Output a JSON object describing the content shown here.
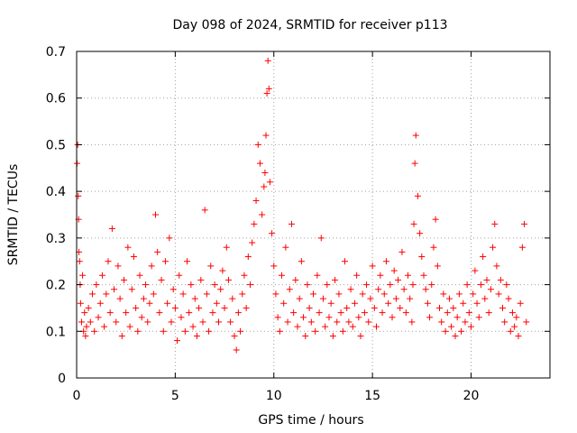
{
  "chart_data": {
    "type": "scatter",
    "title": "Day 098 of 2024, SRMTID for receiver p113",
    "xlabel": "GPS time / hours",
    "ylabel": "SRMTID / TECUs",
    "xlim": [
      0,
      24
    ],
    "ylim": [
      0,
      0.7
    ],
    "x_ticks": [
      0,
      5,
      10,
      15,
      20
    ],
    "x_tick_labels": [
      "0",
      "5",
      "10",
      "15",
      "20"
    ],
    "y_ticks": [
      0,
      0.1,
      0.2,
      0.3,
      0.4,
      0.5,
      0.6,
      0.7
    ],
    "y_tick_labels": [
      "0",
      "0.1",
      "0.2",
      "0.3",
      "0.4",
      "0.5",
      "0.6",
      "0.7"
    ],
    "grid": true,
    "marker": "+",
    "series": [
      {
        "name": "SRMTID",
        "color": "#ff0000",
        "x": [
          0.02,
          0.05,
          0.08,
          0.1,
          0.12,
          0.15,
          0.18,
          0.2,
          0.25,
          0.3,
          0.35,
          0.4,
          0.45,
          0.5,
          0.6,
          0.7,
          0.8,
          0.9,
          1.0,
          1.1,
          1.2,
          1.3,
          1.4,
          1.5,
          1.6,
          1.7,
          1.8,
          1.9,
          2.0,
          2.1,
          2.2,
          2.3,
          2.4,
          2.5,
          2.6,
          2.7,
          2.8,
          2.9,
          3.0,
          3.1,
          3.2,
          3.3,
          3.4,
          3.5,
          3.6,
          3.7,
          3.8,
          3.9,
          4.0,
          4.1,
          4.2,
          4.3,
          4.4,
          4.5,
          4.6,
          4.7,
          4.8,
          4.9,
          5.0,
          5.1,
          5.2,
          5.3,
          5.4,
          5.5,
          5.6,
          5.7,
          5.8,
          5.9,
          6.0,
          6.1,
          6.2,
          6.3,
          6.4,
          6.5,
          6.6,
          6.7,
          6.8,
          6.9,
          7.0,
          7.1,
          7.2,
          7.3,
          7.4,
          7.5,
          7.6,
          7.7,
          7.8,
          7.9,
          8.0,
          8.1,
          8.2,
          8.3,
          8.4,
          8.5,
          8.6,
          8.7,
          8.8,
          8.9,
          9.0,
          9.1,
          9.2,
          9.3,
          9.4,
          9.5,
          9.55,
          9.6,
          9.65,
          9.7,
          9.75,
          9.8,
          9.9,
          10.0,
          10.1,
          10.2,
          10.3,
          10.4,
          10.5,
          10.6,
          10.7,
          10.8,
          10.9,
          11.0,
          11.1,
          11.2,
          11.3,
          11.4,
          11.5,
          11.6,
          11.7,
          11.8,
          11.9,
          12.0,
          12.1,
          12.2,
          12.3,
          12.4,
          12.5,
          12.6,
          12.7,
          12.8,
          12.9,
          13.0,
          13.1,
          13.2,
          13.3,
          13.4,
          13.5,
          13.6,
          13.7,
          13.8,
          13.9,
          14.0,
          14.1,
          14.2,
          14.3,
          14.4,
          14.5,
          14.6,
          14.7,
          14.8,
          14.9,
          15.0,
          15.1,
          15.2,
          15.3,
          15.4,
          15.5,
          15.6,
          15.7,
          15.8,
          15.9,
          16.0,
          16.1,
          16.2,
          16.3,
          16.4,
          16.5,
          16.6,
          16.7,
          16.8,
          16.9,
          17.0,
          17.05,
          17.1,
          17.15,
          17.2,
          17.3,
          17.4,
          17.5,
          17.6,
          17.7,
          17.8,
          17.9,
          18.0,
          18.1,
          18.2,
          18.3,
          18.4,
          18.5,
          18.6,
          18.7,
          18.8,
          18.9,
          19.0,
          19.1,
          19.2,
          19.3,
          19.4,
          19.5,
          19.6,
          19.7,
          19.8,
          19.9,
          20.0,
          20.1,
          20.2,
          20.3,
          20.4,
          20.5,
          20.6,
          20.7,
          20.8,
          20.9,
          21.0,
          21.1,
          21.2,
          21.3,
          21.4,
          21.5,
          21.6,
          21.7,
          21.8,
          21.9,
          22.0,
          22.1,
          22.2,
          22.3,
          22.4,
          22.5,
          22.6,
          22.7,
          22.8
        ],
        "y": [
          0.46,
          0.5,
          0.39,
          0.34,
          0.27,
          0.25,
          0.2,
          0.16,
          0.12,
          0.22,
          0.1,
          0.14,
          0.09,
          0.11,
          0.15,
          0.12,
          0.18,
          0.1,
          0.2,
          0.13,
          0.16,
          0.22,
          0.11,
          0.18,
          0.25,
          0.14,
          0.32,
          0.19,
          0.12,
          0.24,
          0.17,
          0.09,
          0.21,
          0.14,
          0.28,
          0.11,
          0.19,
          0.26,
          0.15,
          0.1,
          0.22,
          0.13,
          0.17,
          0.2,
          0.12,
          0.16,
          0.24,
          0.18,
          0.35,
          0.27,
          0.14,
          0.21,
          0.1,
          0.25,
          0.16,
          0.3,
          0.12,
          0.19,
          0.15,
          0.08,
          0.22,
          0.13,
          0.18,
          0.1,
          0.25,
          0.14,
          0.2,
          0.11,
          0.17,
          0.09,
          0.15,
          0.21,
          0.12,
          0.36,
          0.18,
          0.1,
          0.24,
          0.14,
          0.2,
          0.16,
          0.12,
          0.19,
          0.23,
          0.15,
          0.28,
          0.21,
          0.12,
          0.17,
          0.09,
          0.06,
          0.14,
          0.1,
          0.18,
          0.22,
          0.15,
          0.26,
          0.2,
          0.29,
          0.33,
          0.38,
          0.5,
          0.46,
          0.35,
          0.41,
          0.44,
          0.52,
          0.61,
          0.68,
          0.62,
          0.42,
          0.31,
          0.24,
          0.18,
          0.13,
          0.1,
          0.22,
          0.16,
          0.28,
          0.12,
          0.19,
          0.33,
          0.14,
          0.21,
          0.11,
          0.17,
          0.25,
          0.13,
          0.09,
          0.2,
          0.15,
          0.12,
          0.18,
          0.1,
          0.22,
          0.14,
          0.3,
          0.17,
          0.11,
          0.2,
          0.13,
          0.16,
          0.09,
          0.21,
          0.12,
          0.18,
          0.14,
          0.1,
          0.25,
          0.15,
          0.12,
          0.19,
          0.11,
          0.16,
          0.22,
          0.13,
          0.09,
          0.18,
          0.14,
          0.2,
          0.12,
          0.17,
          0.24,
          0.15,
          0.11,
          0.19,
          0.22,
          0.14,
          0.18,
          0.25,
          0.16,
          0.2,
          0.13,
          0.23,
          0.17,
          0.21,
          0.15,
          0.27,
          0.19,
          0.14,
          0.22,
          0.17,
          0.12,
          0.2,
          0.33,
          0.46,
          0.52,
          0.39,
          0.31,
          0.26,
          0.22,
          0.19,
          0.16,
          0.13,
          0.2,
          0.28,
          0.34,
          0.24,
          0.15,
          0.12,
          0.18,
          0.1,
          0.14,
          0.17,
          0.11,
          0.15,
          0.09,
          0.13,
          0.18,
          0.1,
          0.16,
          0.12,
          0.2,
          0.14,
          0.11,
          0.18,
          0.23,
          0.16,
          0.13,
          0.2,
          0.26,
          0.17,
          0.21,
          0.14,
          0.19,
          0.28,
          0.33,
          0.24,
          0.18,
          0.21,
          0.15,
          0.12,
          0.2,
          0.17,
          0.1,
          0.14,
          0.11,
          0.13,
          0.09,
          0.16,
          0.28,
          0.33,
          0.12
        ]
      }
    ]
  }
}
